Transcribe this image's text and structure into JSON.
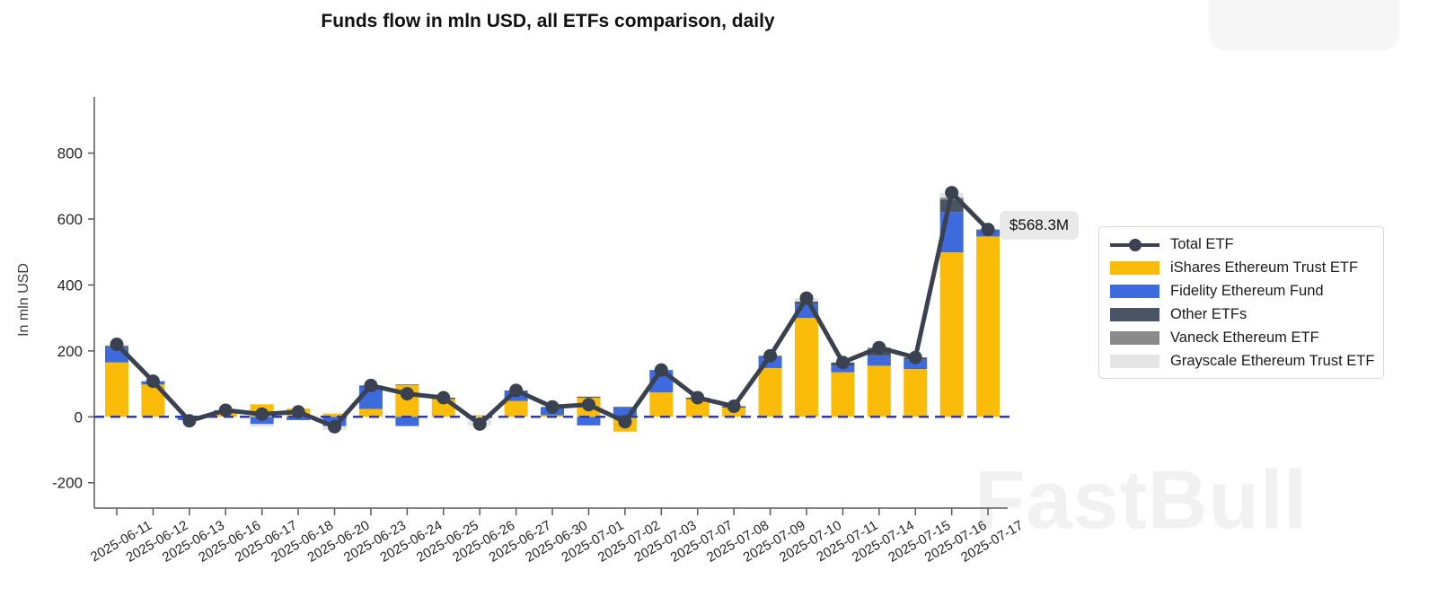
{
  "title": "Funds flow in mln USD, all ETFs comparison, daily",
  "y_axis": {
    "label": "In mln USD",
    "ticks": [
      800,
      600,
      400,
      200,
      0,
      -200
    ]
  },
  "annotation": {
    "text": "$568.3M"
  },
  "watermark": "FastBull",
  "colors": {
    "total_line": "#3a4150",
    "ishares": "#fbbc09",
    "fidelity": "#3d6bdd",
    "other": "#4a5462",
    "vaneck": "#8a8a8a",
    "grayscale": "#e5e5e5",
    "zero_line": "#2638ce",
    "axis": "#595959"
  },
  "legend": [
    {
      "label": "Total ETF",
      "type": "line",
      "color": "#3a4150"
    },
    {
      "label": "iShares Ethereum Trust ETF",
      "type": "bar",
      "color": "#fbbc09"
    },
    {
      "label": "Fidelity Ethereum Fund",
      "type": "bar",
      "color": "#3d6bdd"
    },
    {
      "label": "Other ETFs",
      "type": "bar",
      "color": "#4a5462"
    },
    {
      "label": "Vaneck Ethereum ETF",
      "type": "bar",
      "color": "#8a8a8a"
    },
    {
      "label": "Grayscale Ethereum Trust ETF",
      "type": "bar",
      "color": "#e5e5e5"
    }
  ],
  "chart_data": {
    "type": "bar",
    "subtype": "stacked-bars-with-total-line",
    "title": "Funds flow in mln USD, all ETFs comparison, daily",
    "xlabel": "",
    "ylabel": "In mln USD",
    "ylim": [
      -280,
      850
    ],
    "grid": false,
    "legend_position": "right",
    "categories": [
      "2025-06-11",
      "2025-06-12",
      "2025-06-13",
      "2025-06-16",
      "2025-06-17",
      "2025-06-18",
      "2025-06-20",
      "2025-06-23",
      "2025-06-24",
      "2025-06-25",
      "2025-06-26",
      "2025-06-27",
      "2025-06-30",
      "2025-07-01",
      "2025-07-02",
      "2025-07-03",
      "2025-07-07",
      "2025-07-08",
      "2025-07-09",
      "2025-07-10",
      "2025-07-11",
      "2025-07-14",
      "2025-07-15",
      "2025-07-16",
      "2025-07-17"
    ],
    "series": [
      {
        "name": "iShares Ethereum Trust ETF",
        "color": "#fbbc09",
        "values": [
          165,
          98,
          0,
          17,
          38,
          25,
          10,
          24,
          96,
          54,
          5,
          48,
          5,
          58,
          -45,
          74,
          54,
          28,
          148,
          300,
          135,
          155,
          145,
          499,
          547
        ]
      },
      {
        "name": "Fidelity Ethereum Fund",
        "color": "#3d6bdd",
        "values": [
          45,
          10,
          -10,
          0,
          -22,
          -10,
          -28,
          68,
          -28,
          0,
          0,
          30,
          25,
          -26,
          28,
          68,
          0,
          0,
          33,
          42,
          20,
          30,
          28,
          122,
          18
        ]
      },
      {
        "name": "Other ETFs",
        "color": "#4a5462",
        "values": [
          4,
          0,
          0,
          3,
          0,
          0,
          0,
          3,
          2,
          4,
          0,
          2,
          0,
          3,
          2,
          0,
          4,
          4,
          4,
          8,
          10,
          20,
          7,
          38,
          3.3
        ]
      },
      {
        "name": "Vaneck Ethereum ETF",
        "color": "#8a8a8a",
        "values": [
          2,
          0,
          0,
          0,
          0,
          0,
          0,
          0,
          0,
          0,
          0,
          0,
          0,
          0,
          0,
          0,
          0,
          0,
          0,
          0,
          0,
          5,
          0,
          6,
          0
        ]
      },
      {
        "name": "Grayscale Ethereum Trust ETF",
        "color": "#e5e5e5",
        "values": [
          4,
          0,
          -2,
          0,
          -8,
          0,
          -12,
          0,
          0,
          0,
          -27,
          0,
          0,
          2,
          0,
          0,
          0,
          0,
          0,
          10,
          0,
          0,
          0,
          15,
          0
        ]
      }
    ],
    "total_line": {
      "name": "Total ETF",
      "color": "#3a4150",
      "values": [
        220,
        108,
        -12,
        20,
        8,
        15,
        -30,
        95,
        70,
        58,
        -22,
        80,
        30,
        37,
        -15,
        142,
        58,
        32,
        185,
        360,
        165,
        210,
        180,
        680,
        568.3
      ]
    },
    "last_point_label": "$568.3M"
  }
}
